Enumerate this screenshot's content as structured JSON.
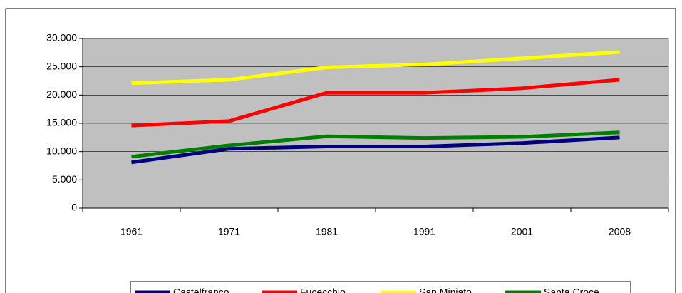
{
  "chart_data": {
    "type": "line",
    "categories": [
      "1961",
      "1971",
      "1981",
      "1991",
      "2001",
      "2008"
    ],
    "series": [
      {
        "name": "Castelfranco",
        "color": "#000080",
        "values": [
          8100,
          10500,
          10900,
          10900,
          11500,
          12500
        ]
      },
      {
        "name": "Fucecchio",
        "color": "#ff0000",
        "values": [
          14600,
          15400,
          20400,
          20400,
          21200,
          22700
        ]
      },
      {
        "name": "San Miniato",
        "color": "#ffff00",
        "values": [
          22100,
          22700,
          24900,
          25400,
          26500,
          27600
        ]
      },
      {
        "name": "Santa Croce",
        "color": "#008000",
        "values": [
          9100,
          11100,
          12700,
          12400,
          12600,
          13400
        ]
      }
    ],
    "ylim": [
      0,
      30000
    ],
    "yticks": [
      0,
      {
        "value": 5000,
        "label": "5.000"
      },
      {
        "value": 10000,
        "label": "10.000"
      },
      {
        "value": 15000,
        "label": "15.000"
      },
      {
        "value": 20000,
        "label": "20.000"
      },
      {
        "value": 25000,
        "label": "25.000"
      },
      {
        "value": 30000,
        "label": "30.000"
      }
    ],
    "grid": true,
    "plot_background": "#c0c0c0",
    "legend": "bottom"
  }
}
